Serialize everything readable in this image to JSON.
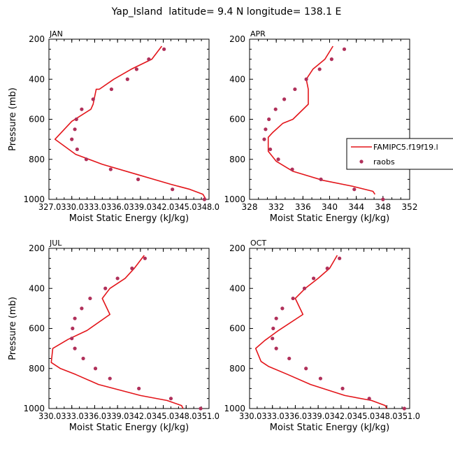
{
  "title": "Yap_Island  latitude= 9.4 N longitude= 138.1 E",
  "chart_data": [
    {
      "type": "line",
      "panel": "JAN",
      "xlabel": "Moist Static Energy (kJ/kg)",
      "ylabel": "Pressure (mb)",
      "xlim": [
        327.0,
        348.0
      ],
      "ylim": [
        1000,
        200
      ],
      "xticks": [
        327.0,
        330.0,
        333.0,
        336.0,
        339.0,
        342.0,
        345.0,
        348.0
      ],
      "xtick_labels": [
        "327.0",
        "330.0",
        "333.0",
        "336.0",
        "339.0",
        "342.0",
        "345.0",
        "348.0"
      ],
      "xtick_text": "327.0330.0333.0336.0339.0342.0345.0348.0",
      "yticks": [
        200,
        400,
        600,
        800,
        1000
      ],
      "ytick_labels": [
        "200",
        "400",
        "600",
        "800",
        "1000"
      ],
      "series": [
        {
          "name": "FAMIPC5.f19f19.l",
          "kind": "line",
          "color": "#e3151a",
          "x": [
            347.6,
            347.2,
            345.5,
            343.0,
            338.5,
            334.0,
            330.5,
            327.8,
            330.0,
            332.5,
            332.8,
            333.2,
            333.6,
            335.5,
            337.8,
            340.5,
            341.8
          ],
          "y": [
            1000,
            975,
            950,
            925,
            875,
            825,
            775,
            700,
            610,
            550,
            525,
            450,
            450,
            400,
            350,
            300,
            235
          ]
        },
        {
          "name": "raobs",
          "kind": "scatter",
          "color": "#b0305a",
          "x": [
            347.4,
            343.2,
            338.7,
            335.1,
            331.9,
            330.7,
            330.0,
            330.4,
            330.6,
            331.3,
            332.8,
            335.2,
            337.3,
            338.5,
            340.1,
            342.1
          ],
          "y": [
            1000,
            950,
            900,
            850,
            800,
            750,
            700,
            650,
            600,
            550,
            500,
            450,
            400,
            350,
            300,
            250
          ]
        }
      ]
    },
    {
      "type": "line",
      "panel": "APR",
      "xlabel": "Moist Static Energy (kJ/kg)",
      "ylabel": "",
      "xlim": [
        328,
        352
      ],
      "ylim": [
        1000,
        200
      ],
      "xticks": [
        328,
        332,
        336,
        340,
        344,
        348,
        352
      ],
      "xtick_labels": [
        "328",
        "332",
        "336",
        "340",
        "344",
        "348",
        "352"
      ],
      "yticks": [
        200,
        400,
        600,
        800,
        1000
      ],
      "ytick_labels": [
        "200",
        "400",
        "600",
        "800",
        "1000"
      ],
      "series": [
        {
          "name": "FAMIPC5.f19f19.l",
          "kind": "line",
          "color": "#e3151a",
          "x": [
            346.8,
            346.5,
            343.5,
            339.0,
            334.5,
            332.0,
            330.8,
            330.8,
            331.5,
            333.0,
            334.5,
            336.8,
            336.8,
            336.5,
            337.5,
            339.3,
            340.5
          ],
          "y": [
            975,
            960,
            935,
            905,
            860,
            810,
            760,
            690,
            665,
            620,
            600,
            525,
            450,
            400,
            350,
            300,
            235
          ]
        },
        {
          "name": "raobs",
          "kind": "scatter",
          "color": "#b0305a",
          "x": [
            348.0,
            343.7,
            338.7,
            334.4,
            332.3,
            331.1,
            330.2,
            330.4,
            330.9,
            331.9,
            333.2,
            334.8,
            336.5,
            338.5,
            340.3,
            342.2
          ],
          "y": [
            1000,
            950,
            900,
            850,
            800,
            750,
            700,
            650,
            600,
            550,
            500,
            450,
            400,
            350,
            300,
            250
          ]
        }
      ],
      "legend": {
        "placement": "right",
        "entries": [
          "FAMIPC5.f19f19.l",
          "raobs"
        ]
      }
    },
    {
      "type": "line",
      "panel": "JUL",
      "xlabel": "Moist Static Energy (kJ/kg)",
      "ylabel": "Pressure (mb)",
      "xlim": [
        330.0,
        351.0
      ],
      "ylim": [
        1000,
        200
      ],
      "xticks": [
        330.0,
        333.0,
        336.0,
        339.0,
        342.0,
        345.0,
        348.0,
        351.0
      ],
      "xtick_labels": [
        "330.0",
        "333.0",
        "336.0",
        "339.0",
        "342.0",
        "345.0",
        "348.0",
        "351.0"
      ],
      "xtick_text": "330.0333.0336.0339.0342.0345.0348.0351.0",
      "yticks": [
        200,
        400,
        600,
        800,
        1000
      ],
      "ytick_labels": [
        "200",
        "400",
        "600",
        "800",
        "1000"
      ],
      "series": [
        {
          "name": "FAMIPC5.f19f19.l",
          "kind": "line",
          "color": "#e3151a",
          "x": [
            347.6,
            347.4,
            345.5,
            342.0,
            336.5,
            333.5,
            331.5,
            330.3,
            330.5,
            332.5,
            335.0,
            338.0,
            337.0,
            338.0,
            340.0,
            341.2,
            342.5
          ],
          "y": [
            1000,
            985,
            960,
            935,
            880,
            830,
            800,
            770,
            700,
            655,
            610,
            530,
            450,
            400,
            350,
            300,
            235
          ]
        },
        {
          "name": "raobs",
          "kind": "scatter",
          "color": "#b0305a",
          "x": [
            349.9,
            346.0,
            341.8,
            338.0,
            336.1,
            334.5,
            333.4,
            333.0,
            333.1,
            333.4,
            334.3,
            335.4,
            337.4,
            339.0,
            340.9,
            342.6
          ],
          "y": [
            1000,
            950,
            900,
            850,
            800,
            750,
            700,
            650,
            600,
            550,
            500,
            450,
            400,
            350,
            300,
            250
          ]
        }
      ]
    },
    {
      "type": "line",
      "panel": "OCT",
      "xlabel": "Moist Static Energy (kJ/kg)",
      "ylabel": "",
      "xlim": [
        330.0,
        351.0
      ],
      "ylim": [
        1000,
        200
      ],
      "xticks": [
        330.0,
        333.0,
        336.0,
        339.0,
        342.0,
        345.0,
        348.0,
        351.0
      ],
      "xtick_labels": [
        "330.0",
        "333.0",
        "336.0",
        "339.0",
        "342.0",
        "345.0",
        "348.0",
        "351.0"
      ],
      "xtick_text": "330.0333.0336.0339.0342.0345.0348.0351.0",
      "yticks": [
        200,
        400,
        600,
        800,
        1000
      ],
      "ytick_labels": [
        "200",
        "400",
        "600",
        "800",
        "1000"
      ],
      "series": [
        {
          "name": "FAMIPC5.f19f19.l",
          "kind": "line",
          "color": "#e3151a",
          "x": [
            348.0,
            347.8,
            346.0,
            342.5,
            338.0,
            335.0,
            332.5,
            331.5,
            330.8,
            332.0,
            333.8,
            337.0,
            336.0,
            337.3,
            339.0,
            340.5,
            341.5
          ],
          "y": [
            1000,
            985,
            960,
            935,
            880,
            830,
            790,
            765,
            700,
            660,
            610,
            530,
            450,
            400,
            350,
            300,
            235
          ]
        },
        {
          "name": "raobs",
          "kind": "scatter",
          "color": "#b0305a",
          "x": [
            350.3,
            345.7,
            342.2,
            339.3,
            337.4,
            335.2,
            333.5,
            333.0,
            333.1,
            333.5,
            334.3,
            335.7,
            337.2,
            338.4,
            340.2,
            341.8
          ],
          "y": [
            1000,
            950,
            900,
            850,
            800,
            750,
            700,
            650,
            600,
            550,
            500,
            450,
            400,
            350,
            300,
            250
          ]
        }
      ]
    }
  ]
}
